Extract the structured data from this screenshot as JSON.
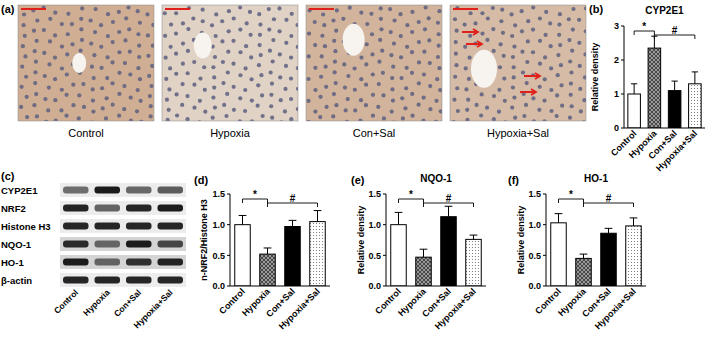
{
  "figure": {
    "a": {
      "label": "(a)",
      "images": [
        "Control",
        "Hypoxia",
        "Con+Sal",
        "Hypoxia+Sal"
      ]
    },
    "c": {
      "label": "(c)",
      "rows": [
        "CYP2E1",
        "NRF2",
        "Histone H3",
        "NQO-1",
        "HO-1",
        "β-actin"
      ],
      "lanes": [
        "Control",
        "Hypoxia",
        "Con+Sal",
        "Hypoxia+Sal"
      ]
    }
  },
  "chart_data": [
    {
      "type": "bar",
      "panel": "(b)",
      "title": "CYP2E1",
      "y_label": "Relative density",
      "categories": [
        "Control",
        "Hypoxia",
        "Con+Sal",
        "Hypoxia+Sal"
      ],
      "values": [
        1.0,
        2.35,
        1.1,
        1.3
      ],
      "errors": [
        0.3,
        0.35,
        0.28,
        0.35
      ],
      "colors": [
        "#ffffff",
        "#9a9a9a",
        "#000000",
        "#ffffff"
      ],
      "ylim": [
        0,
        3
      ],
      "yticks": [
        0,
        1,
        2,
        3
      ],
      "grid": false,
      "significance": [
        {
          "from": 0,
          "to": 1,
          "label": "*"
        },
        {
          "from": 1,
          "to": 3,
          "label": "#"
        }
      ]
    },
    {
      "type": "bar",
      "panel": "(d)",
      "y_label": "n-NRF2/Histone H3",
      "categories": [
        "Control",
        "Hypoxia",
        "Con+Sal",
        "Hypoxia+Sal"
      ],
      "values": [
        1.0,
        0.52,
        0.97,
        1.05
      ],
      "errors": [
        0.15,
        0.1,
        0.1,
        0.18
      ],
      "colors": [
        "#ffffff",
        "#9a9a9a",
        "#000000",
        "#ffffff"
      ],
      "ylim": [
        0,
        1.5
      ],
      "yticks": [
        {
          "value": 0,
          "label": "0.0"
        },
        {
          "value": 0.5,
          "label": "0.5"
        },
        {
          "value": 1,
          "label": "1.0"
        },
        {
          "value": 1.5,
          "label": "1.5"
        }
      ],
      "grid": false,
      "significance": [
        {
          "from": 0,
          "to": 1,
          "label": "*"
        },
        {
          "from": 1,
          "to": 3,
          "label": "#"
        }
      ]
    },
    {
      "type": "bar",
      "panel": "(e)",
      "title": "NQO-1",
      "y_label": "Relative density",
      "categories": [
        "Control",
        "Hypoxia",
        "Con+Sal",
        "Hypoxia+Sal"
      ],
      "values": [
        1.0,
        0.47,
        1.13,
        0.76
      ],
      "errors": [
        0.2,
        0.13,
        0.17,
        0.07
      ],
      "colors": [
        "#ffffff",
        "#9a9a9a",
        "#000000",
        "#ffffff"
      ],
      "ylim": [
        0,
        1.5
      ],
      "yticks": [
        {
          "value": 0,
          "label": "0.0"
        },
        {
          "value": 0.5,
          "label": "0.5"
        },
        {
          "value": 1,
          "label": "1.0"
        },
        {
          "value": 1.5,
          "label": "1.5"
        }
      ],
      "grid": false,
      "significance": [
        {
          "from": 0,
          "to": 1,
          "label": "*"
        },
        {
          "from": 1,
          "to": 3,
          "label": "#"
        }
      ]
    },
    {
      "type": "bar",
      "panel": "(f)",
      "title": "HO-1",
      "y_label": "Relative density",
      "categories": [
        "Control",
        "Hypoxia",
        "Con+Sal",
        "Hypoxia+Sal"
      ],
      "values": [
        1.03,
        0.45,
        0.86,
        0.98
      ],
      "errors": [
        0.15,
        0.07,
        0.08,
        0.13
      ],
      "colors": [
        "#ffffff",
        "#9a9a9a",
        "#000000",
        "#ffffff"
      ],
      "ylim": [
        0,
        1.5
      ],
      "yticks": [
        {
          "value": 0,
          "label": "0.0"
        },
        {
          "value": 0.5,
          "label": "0.5"
        },
        {
          "value": 1,
          "label": "1.0"
        },
        {
          "value": 1.5,
          "label": "1.5"
        }
      ],
      "grid": false,
      "significance": [
        {
          "from": 0,
          "to": 1,
          "label": "*"
        },
        {
          "from": 1,
          "to": 3,
          "label": "#"
        }
      ]
    }
  ]
}
